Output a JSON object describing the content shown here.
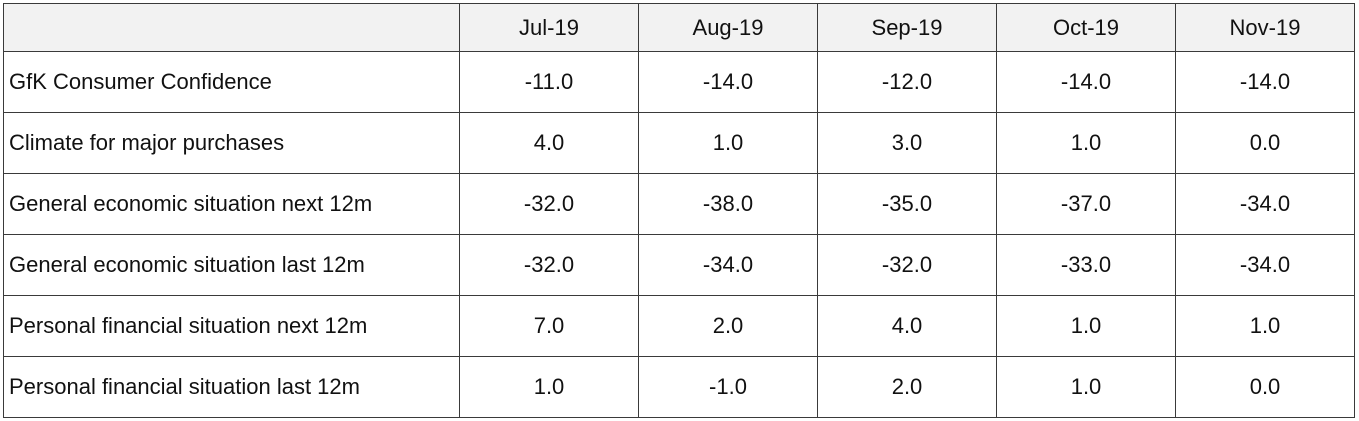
{
  "chart_data": {
    "type": "table",
    "columns": [
      "",
      "Jul-19",
      "Aug-19",
      "Sep-19",
      "Oct-19",
      "Nov-19"
    ],
    "rows": [
      {
        "label": "GfK Consumer Confidence",
        "values": [
          "-11.0",
          "-14.0",
          "-12.0",
          "-14.0",
          "-14.0"
        ]
      },
      {
        "label": "Climate for major purchases",
        "values": [
          "4.0",
          "1.0",
          "3.0",
          "1.0",
          "0.0"
        ]
      },
      {
        "label": "General economic situation next 12m",
        "values": [
          "-32.0",
          "-38.0",
          "-35.0",
          "-37.0",
          "-34.0"
        ]
      },
      {
        "label": "General economic situation last 12m",
        "values": [
          "-32.0",
          "-34.0",
          "-32.0",
          "-33.0",
          "-34.0"
        ]
      },
      {
        "label": "Personal financial situation next 12m",
        "values": [
          "7.0",
          "2.0",
          "4.0",
          "1.0",
          "1.0"
        ]
      },
      {
        "label": "Personal financial situation last 12m",
        "values": [
          "1.0",
          "-1.0",
          "2.0",
          "1.0",
          "0.0"
        ]
      }
    ]
  },
  "colors": {
    "header_background": "#f2f2f2",
    "border": "#3a3a3a",
    "text": "#111111"
  }
}
